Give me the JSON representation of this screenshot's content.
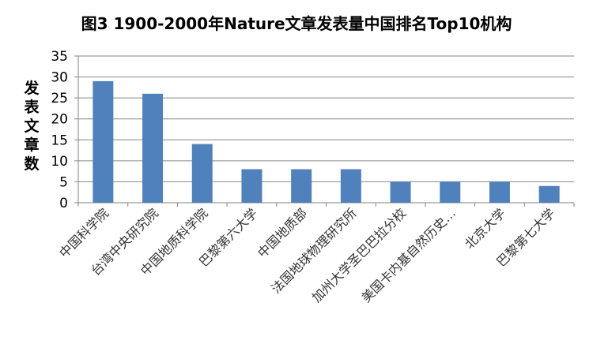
{
  "chart_data": {
    "type": "bar",
    "title": "图3 1900-2000年Nature文章发表量中国排名Top10机构",
    "xlabel": "",
    "ylabel": "发表文章数",
    "ylim": [
      0,
      35
    ],
    "yticks": [
      0,
      5,
      10,
      15,
      20,
      25,
      30,
      35
    ],
    "grid": true,
    "legend": "none",
    "bar_color": "#4f81bd",
    "categories": [
      "中国科学院",
      "台湾中央研究院",
      "中国地质科学院",
      "巴黎第六大学",
      "中国地质部",
      "法国地球物理研究所",
      "加州大学圣巴巴拉分校",
      "美国卡内基自然历史…",
      "北京大学",
      "巴黎第七大学"
    ],
    "values": [
      29,
      26,
      14,
      8,
      8,
      8,
      5,
      5,
      5,
      4
    ]
  }
}
